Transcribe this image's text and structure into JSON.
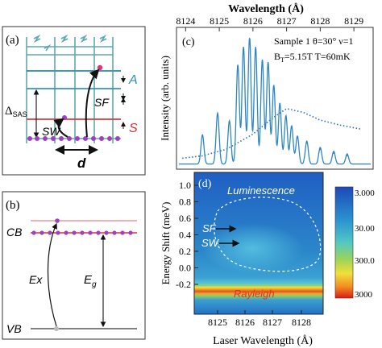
{
  "panel_a": {
    "label": "(a)",
    "delta": "Δ",
    "delta_sub": "SAS",
    "level_A": "A",
    "level_S": "S",
    "sf": "SF",
    "sw": "SW",
    "d": "d",
    "colors": {
      "frame": "#5fa8ad",
      "level_A": "#2f8fbe",
      "level_S": "#e03030",
      "dot": "#a040c0"
    }
  },
  "panel_b": {
    "label": "(b)",
    "cb": "CB",
    "vb": "VB",
    "ex": "Ex",
    "eg": "E",
    "eg_sub": "g"
  },
  "panel_c": {
    "label": "(c)",
    "top_axis_title": "Wavelength (Å)",
    "top_ticks": [
      "8124",
      "8125",
      "8126",
      "8127",
      "8128",
      "8129"
    ],
    "ylabel": "Intensity (arb. units)",
    "annotation_line1": "Sample 1 θ=30° ν=1",
    "annotation_line2_b": "B",
    "annotation_line2_sub": "T",
    "annotation_line2_rest": "=5.15T T=60mK",
    "colors": {
      "line": "#2e86c1"
    }
  },
  "panel_d": {
    "label": "(d)",
    "luminescence": "Luminescence",
    "sf": "SF",
    "sw": "SW",
    "rayleigh": "Rayleigh",
    "ylabel": "Energy Shift (meV)",
    "yticks": [
      "1.0",
      "0.8",
      "0.6",
      "0.4",
      "0.2",
      "0.0",
      "-0.2"
    ],
    "xlabel": "Laser Wavelength (Å)",
    "xticks": [
      "8125",
      "8126",
      "8127",
      "8128"
    ],
    "colorbar_ticks": [
      "3.000",
      "30.00",
      "300.0",
      "3000"
    ]
  },
  "chart_data": {
    "type": "line",
    "x_axis_title": "Wavelength (Å)",
    "ylabel": "Intensity (arb. units)",
    "xlim": [
      8123.8,
      8129.5
    ],
    "peaks": [
      {
        "x": 8124.5,
        "h": 0.23
      },
      {
        "x": 8124.95,
        "h": 0.4
      },
      {
        "x": 8125.3,
        "h": 0.34
      },
      {
        "x": 8125.55,
        "h": 0.78
      },
      {
        "x": 8125.72,
        "h": 0.92
      },
      {
        "x": 8125.9,
        "h": 1.0
      },
      {
        "x": 8126.08,
        "h": 0.92
      },
      {
        "x": 8126.28,
        "h": 0.82
      },
      {
        "x": 8126.45,
        "h": 0.8
      },
      {
        "x": 8126.62,
        "h": 0.62
      },
      {
        "x": 8126.8,
        "h": 0.48
      },
      {
        "x": 8126.98,
        "h": 0.38
      },
      {
        "x": 8127.15,
        "h": 0.3
      },
      {
        "x": 8127.32,
        "h": 0.22
      },
      {
        "x": 8127.6,
        "h": 0.18
      },
      {
        "x": 8128.0,
        "h": 0.13
      },
      {
        "x": 8128.4,
        "h": 0.1
      },
      {
        "x": 8128.8,
        "h": 0.08
      }
    ],
    "luminescence_dotted": [
      {
        "x": 8123.9,
        "y": 0.06
      },
      {
        "x": 8124.5,
        "y": 0.08
      },
      {
        "x": 8125.2,
        "y": 0.13
      },
      {
        "x": 8126.0,
        "y": 0.25
      },
      {
        "x": 8126.6,
        "y": 0.38
      },
      {
        "x": 8127.0,
        "y": 0.45
      },
      {
        "x": 8127.5,
        "y": 0.42
      },
      {
        "x": 8128.0,
        "y": 0.36
      },
      {
        "x": 8128.6,
        "y": 0.32
      },
      {
        "x": 8129.2,
        "y": 0.29
      }
    ]
  }
}
